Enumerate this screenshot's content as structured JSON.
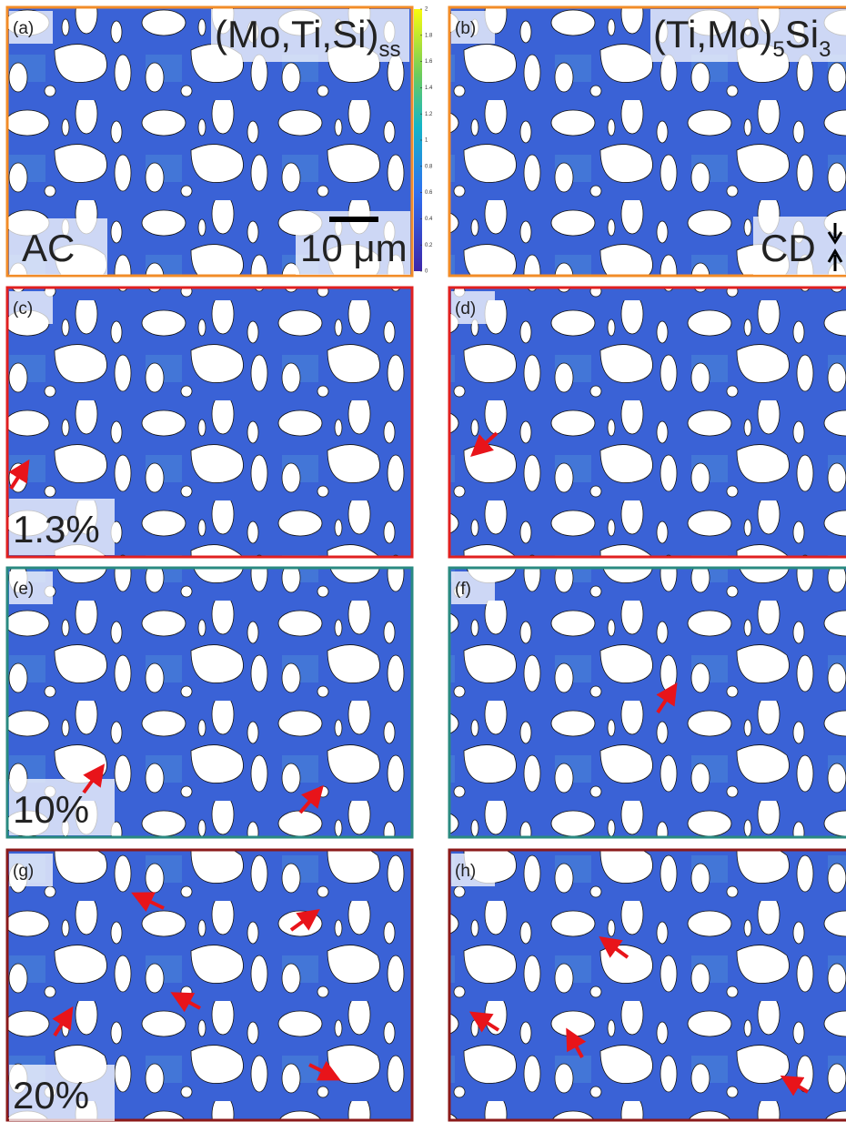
{
  "panels": [
    {
      "label": "(a)",
      "phase": {
        "main": "(Mo,Ti,Si)",
        "sub": "ss"
      },
      "condition": "AC",
      "scale_bar": "10 μm"
    },
    {
      "label": "(b)",
      "phase": {
        "main": "(Ti,Mo)",
        "sub1": "5",
        "mid": "Si",
        "sub2": "3"
      },
      "direction": "CD"
    },
    {
      "label": "(c)",
      "condition": "1.3%"
    },
    {
      "label": "(d)"
    },
    {
      "label": "(e)",
      "condition": "10%"
    },
    {
      "label": "(f)"
    },
    {
      "label": "(g)",
      "condition": "20%"
    },
    {
      "label": "(h)"
    }
  ],
  "colorbar": {
    "lim": [
      0,
      2
    ],
    "ticks": [
      0,
      0.2,
      0.4,
      0.6,
      0.8,
      1,
      1.2,
      1.4,
      1.6,
      1.8,
      2
    ]
  }
}
